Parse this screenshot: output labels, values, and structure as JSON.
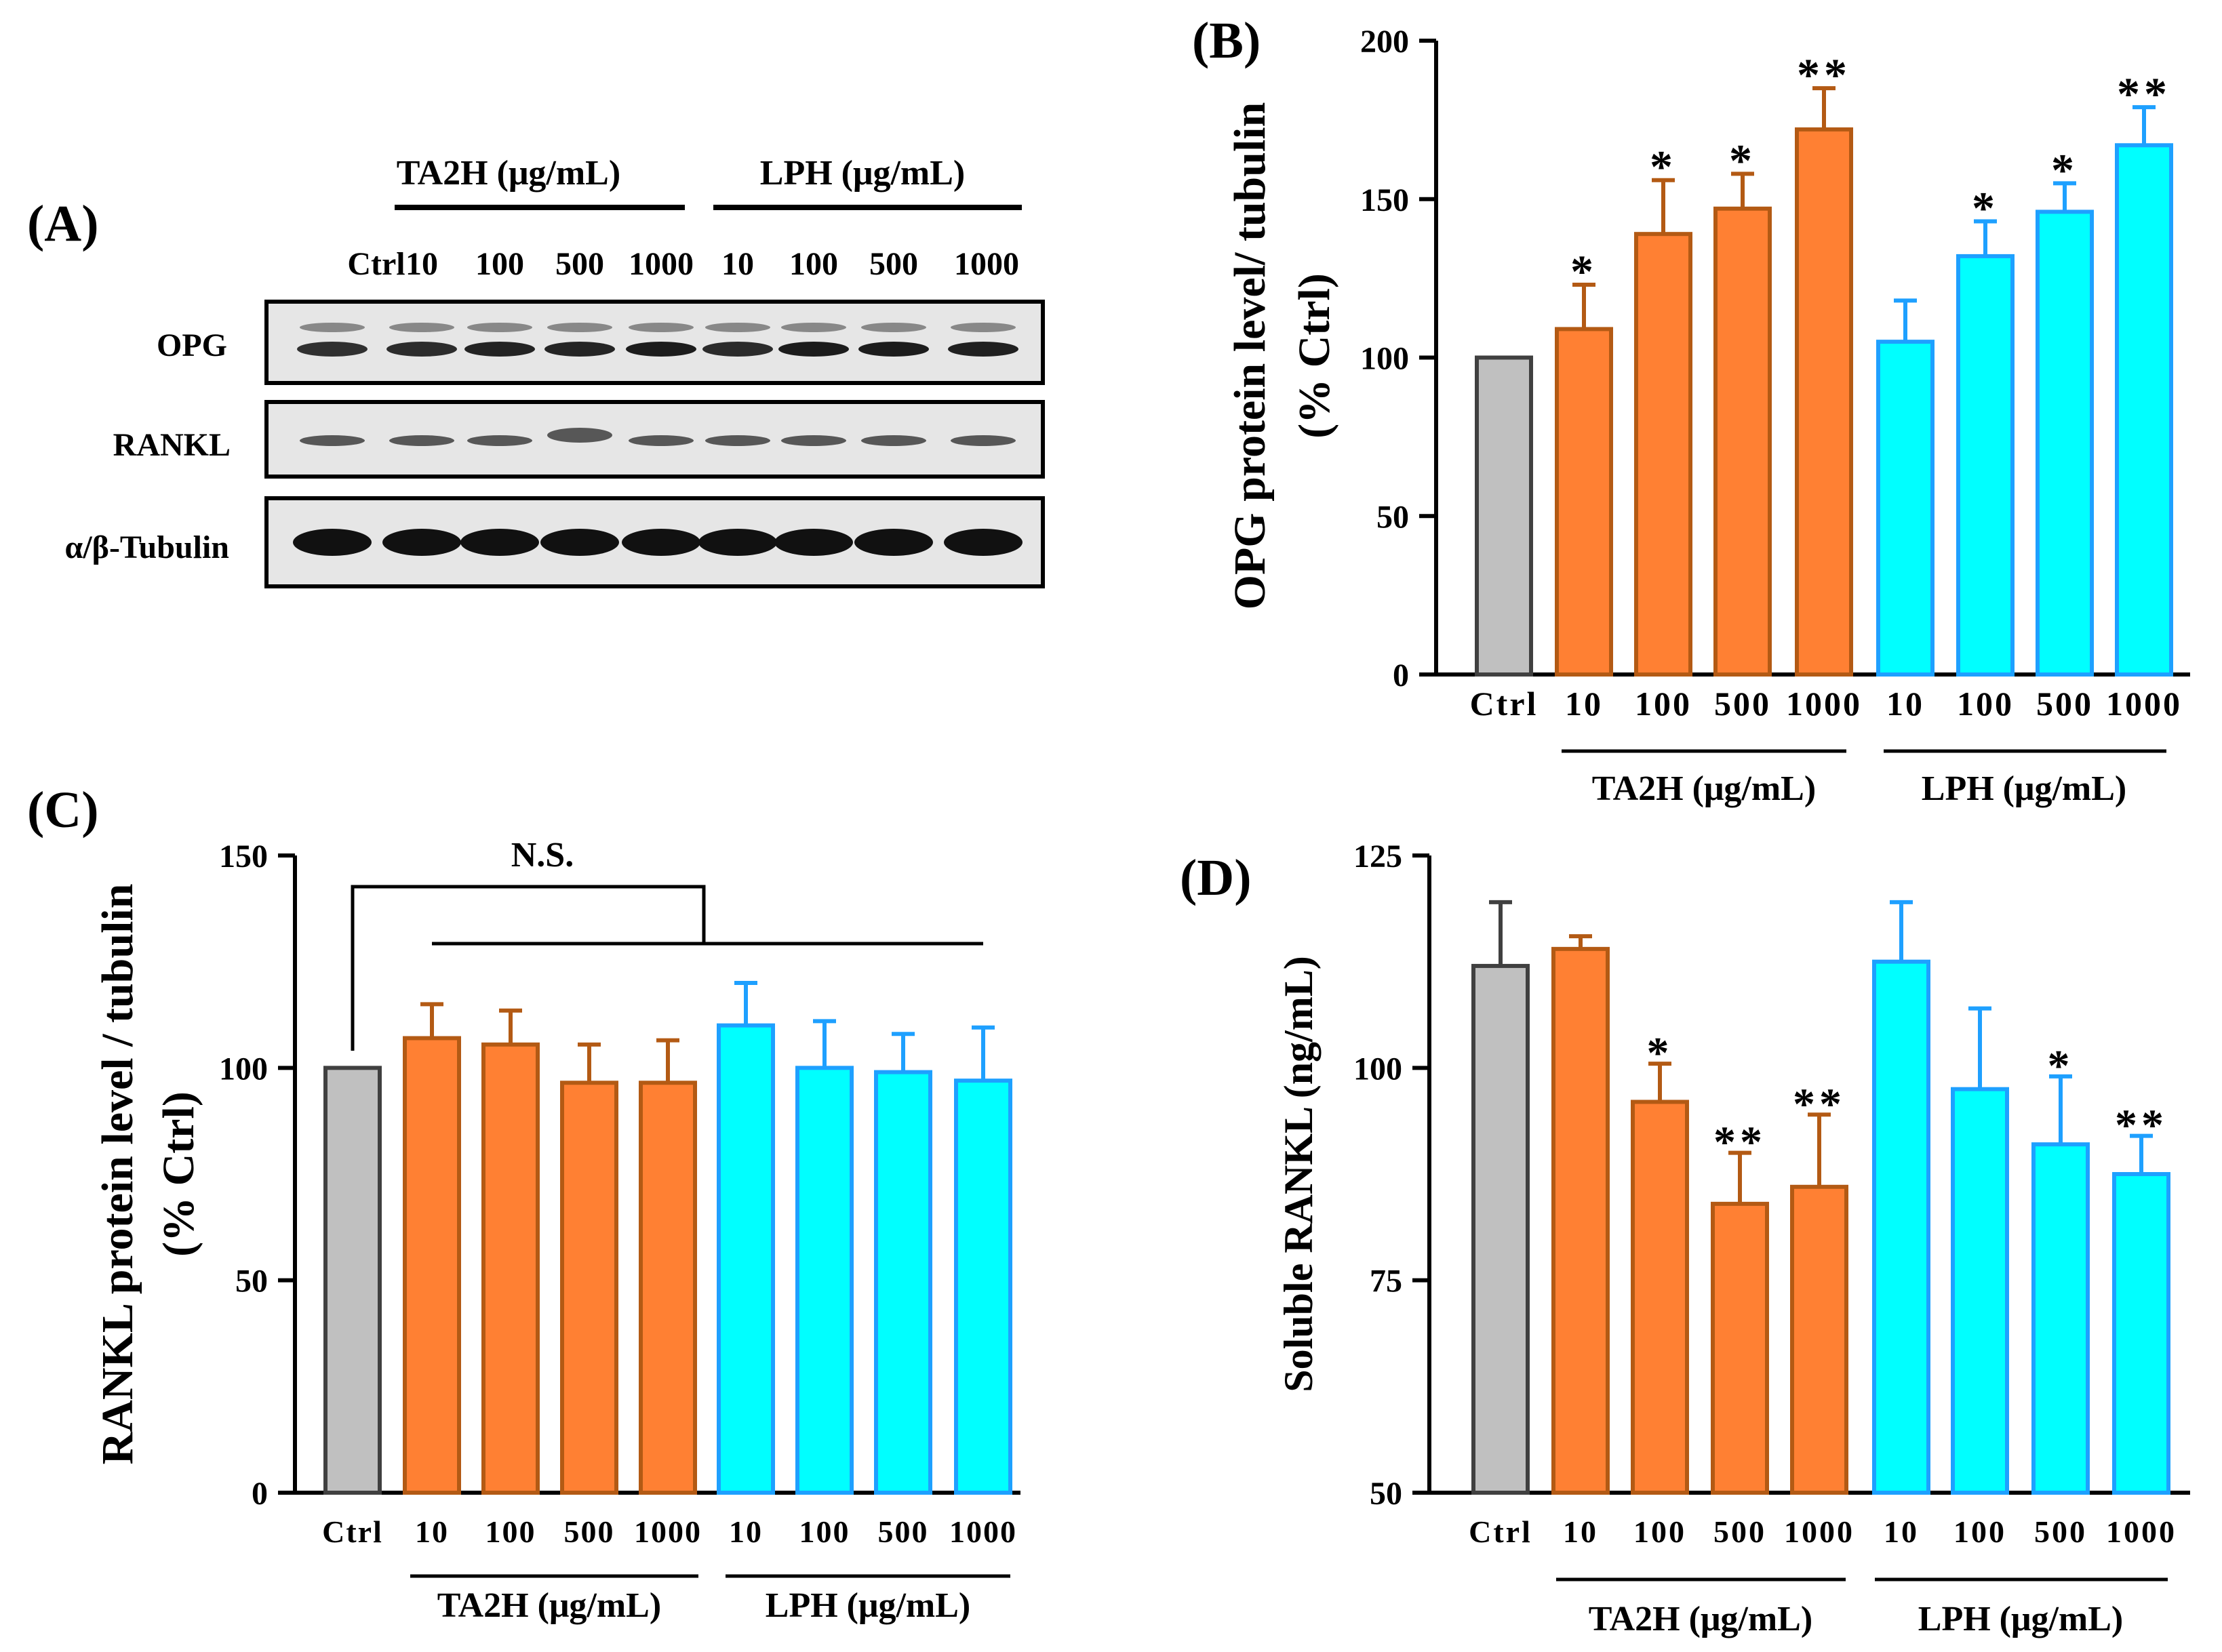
{
  "colors": {
    "ctrl_fill": "#C0C0C0",
    "ctrl_edge": "#404040",
    "ta2h_fill": "#FF8033",
    "ta2h_edge": "#B35A14",
    "lph_fill": "#00FFFF",
    "lph_edge": "#1EA0FF",
    "blot_bg": "#E6E6E6",
    "band": "#1C1C1C"
  },
  "panel_a": {
    "label": "(A)",
    "group_labels": [
      "TA2H (μg/mL)",
      "LPH (μg/mL)"
    ],
    "lanes": [
      "Ctrl",
      "10",
      "100",
      "500",
      "1000",
      "10",
      "100",
      "500",
      "1000"
    ],
    "rows": [
      "OPG",
      "RANKL",
      "α/β-Tubulin"
    ]
  },
  "chart_data": [
    {
      "panel": "(B)",
      "type": "bar",
      "ylabel": [
        "OPG protein level/ tubulin",
        "(% Ctrl)"
      ],
      "ylim": [
        0,
        200
      ],
      "yticks": [
        0,
        50,
        100,
        150,
        200
      ],
      "categories": [
        "Ctrl",
        "10",
        "100",
        "500",
        "1000",
        "10",
        "100",
        "500",
        "1000"
      ],
      "groups": [
        "Ctrl",
        "TA2H",
        "TA2H",
        "TA2H",
        "TA2H",
        "LPH",
        "LPH",
        "LPH",
        "LPH"
      ],
      "values": [
        100,
        109,
        139,
        147,
        172,
        105,
        132,
        146,
        167
      ],
      "errors": [
        0,
        14,
        17,
        11,
        13,
        13,
        11,
        9,
        12
      ],
      "significance": [
        "",
        "*",
        "*",
        "*",
        "**",
        "",
        "*",
        "*",
        "**"
      ],
      "group_labels": [
        "TA2H (μg/mL)",
        "LPH (μg/mL)"
      ],
      "annotation": ""
    },
    {
      "panel": "(C)",
      "type": "bar",
      "ylabel": [
        "RANKL protein level / tubulin",
        "(% Ctrl)"
      ],
      "ylim": [
        0,
        150
      ],
      "yticks": [
        0,
        50,
        100,
        150
      ],
      "categories": [
        "Ctrl",
        "10",
        "100",
        "500",
        "1000",
        "10",
        "100",
        "500",
        "1000"
      ],
      "groups": [
        "Ctrl",
        "TA2H",
        "TA2H",
        "TA2H",
        "TA2H",
        "LPH",
        "LPH",
        "LPH",
        "LPH"
      ],
      "values": [
        100,
        107,
        105.5,
        96.5,
        96.5,
        110,
        100,
        99,
        97
      ],
      "errors": [
        0,
        8,
        8,
        9,
        10,
        10,
        11,
        9,
        12.5
      ],
      "significance": [
        "",
        "",
        "",
        "",
        "",
        "",
        "",
        "",
        ""
      ],
      "group_labels": [
        "TA2H (μg/mL)",
        "LPH (μg/mL)"
      ],
      "annotation": "N.S."
    },
    {
      "panel": "(D)",
      "type": "bar",
      "ylabel": [
        "Soluble RANKL (ng/mL)"
      ],
      "ylim": [
        50,
        125
      ],
      "yticks": [
        50,
        75,
        100,
        125
      ],
      "categories": [
        "Ctrl",
        "10",
        "100",
        "500",
        "1000",
        "10",
        "100",
        "500",
        "1000"
      ],
      "groups": [
        "Ctrl",
        "TA2H",
        "TA2H",
        "TA2H",
        "TA2H",
        "LPH",
        "LPH",
        "LPH",
        "LPH"
      ],
      "values": [
        112,
        114,
        96,
        84,
        86,
        112.5,
        97.5,
        91,
        87.5
      ],
      "errors": [
        7.5,
        1.5,
        4.5,
        6,
        8.5,
        7,
        9.5,
        8,
        4.5
      ],
      "significance": [
        "",
        "",
        "*",
        "**",
        "**",
        "",
        "",
        "*",
        "**"
      ],
      "group_labels": [
        "TA2H (μg/mL)",
        "LPH (μg/mL)"
      ],
      "annotation": ""
    }
  ]
}
